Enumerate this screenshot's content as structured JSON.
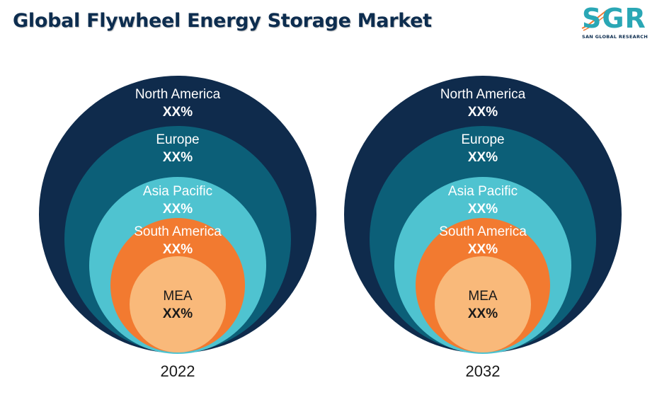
{
  "title": "Global Flywheel Energy Storage Market",
  "logo": {
    "letters": "SGR",
    "subtitle": "SAN GLOBAL RESEARCH",
    "icon": "sgr-logo-swoosh"
  },
  "colors": {
    "title": "#0d2d4f",
    "ring_north_america": "#0f2b4c",
    "ring_europe": "#0c5f78",
    "ring_asia_pacific": "#4fc3d0",
    "ring_south_america": "#f27a30",
    "ring_mea": "#f9b97a",
    "logo_accent": "#2aa7b5"
  },
  "diagrams": [
    {
      "year": "2022",
      "regions": [
        {
          "name": "North America",
          "value": "XX%"
        },
        {
          "name": "Europe",
          "value": "XX%"
        },
        {
          "name": "Asia Pacific",
          "value": "XX%"
        },
        {
          "name": "South America",
          "value": "XX%"
        },
        {
          "name": "MEA",
          "value": "XX%"
        }
      ]
    },
    {
      "year": "2032",
      "regions": [
        {
          "name": "North America",
          "value": "XX%"
        },
        {
          "name": "Europe",
          "value": "XX%"
        },
        {
          "name": "Asia Pacific",
          "value": "XX%"
        },
        {
          "name": "South America",
          "value": "XX%"
        },
        {
          "name": "MEA",
          "value": "XX%"
        }
      ]
    }
  ]
}
